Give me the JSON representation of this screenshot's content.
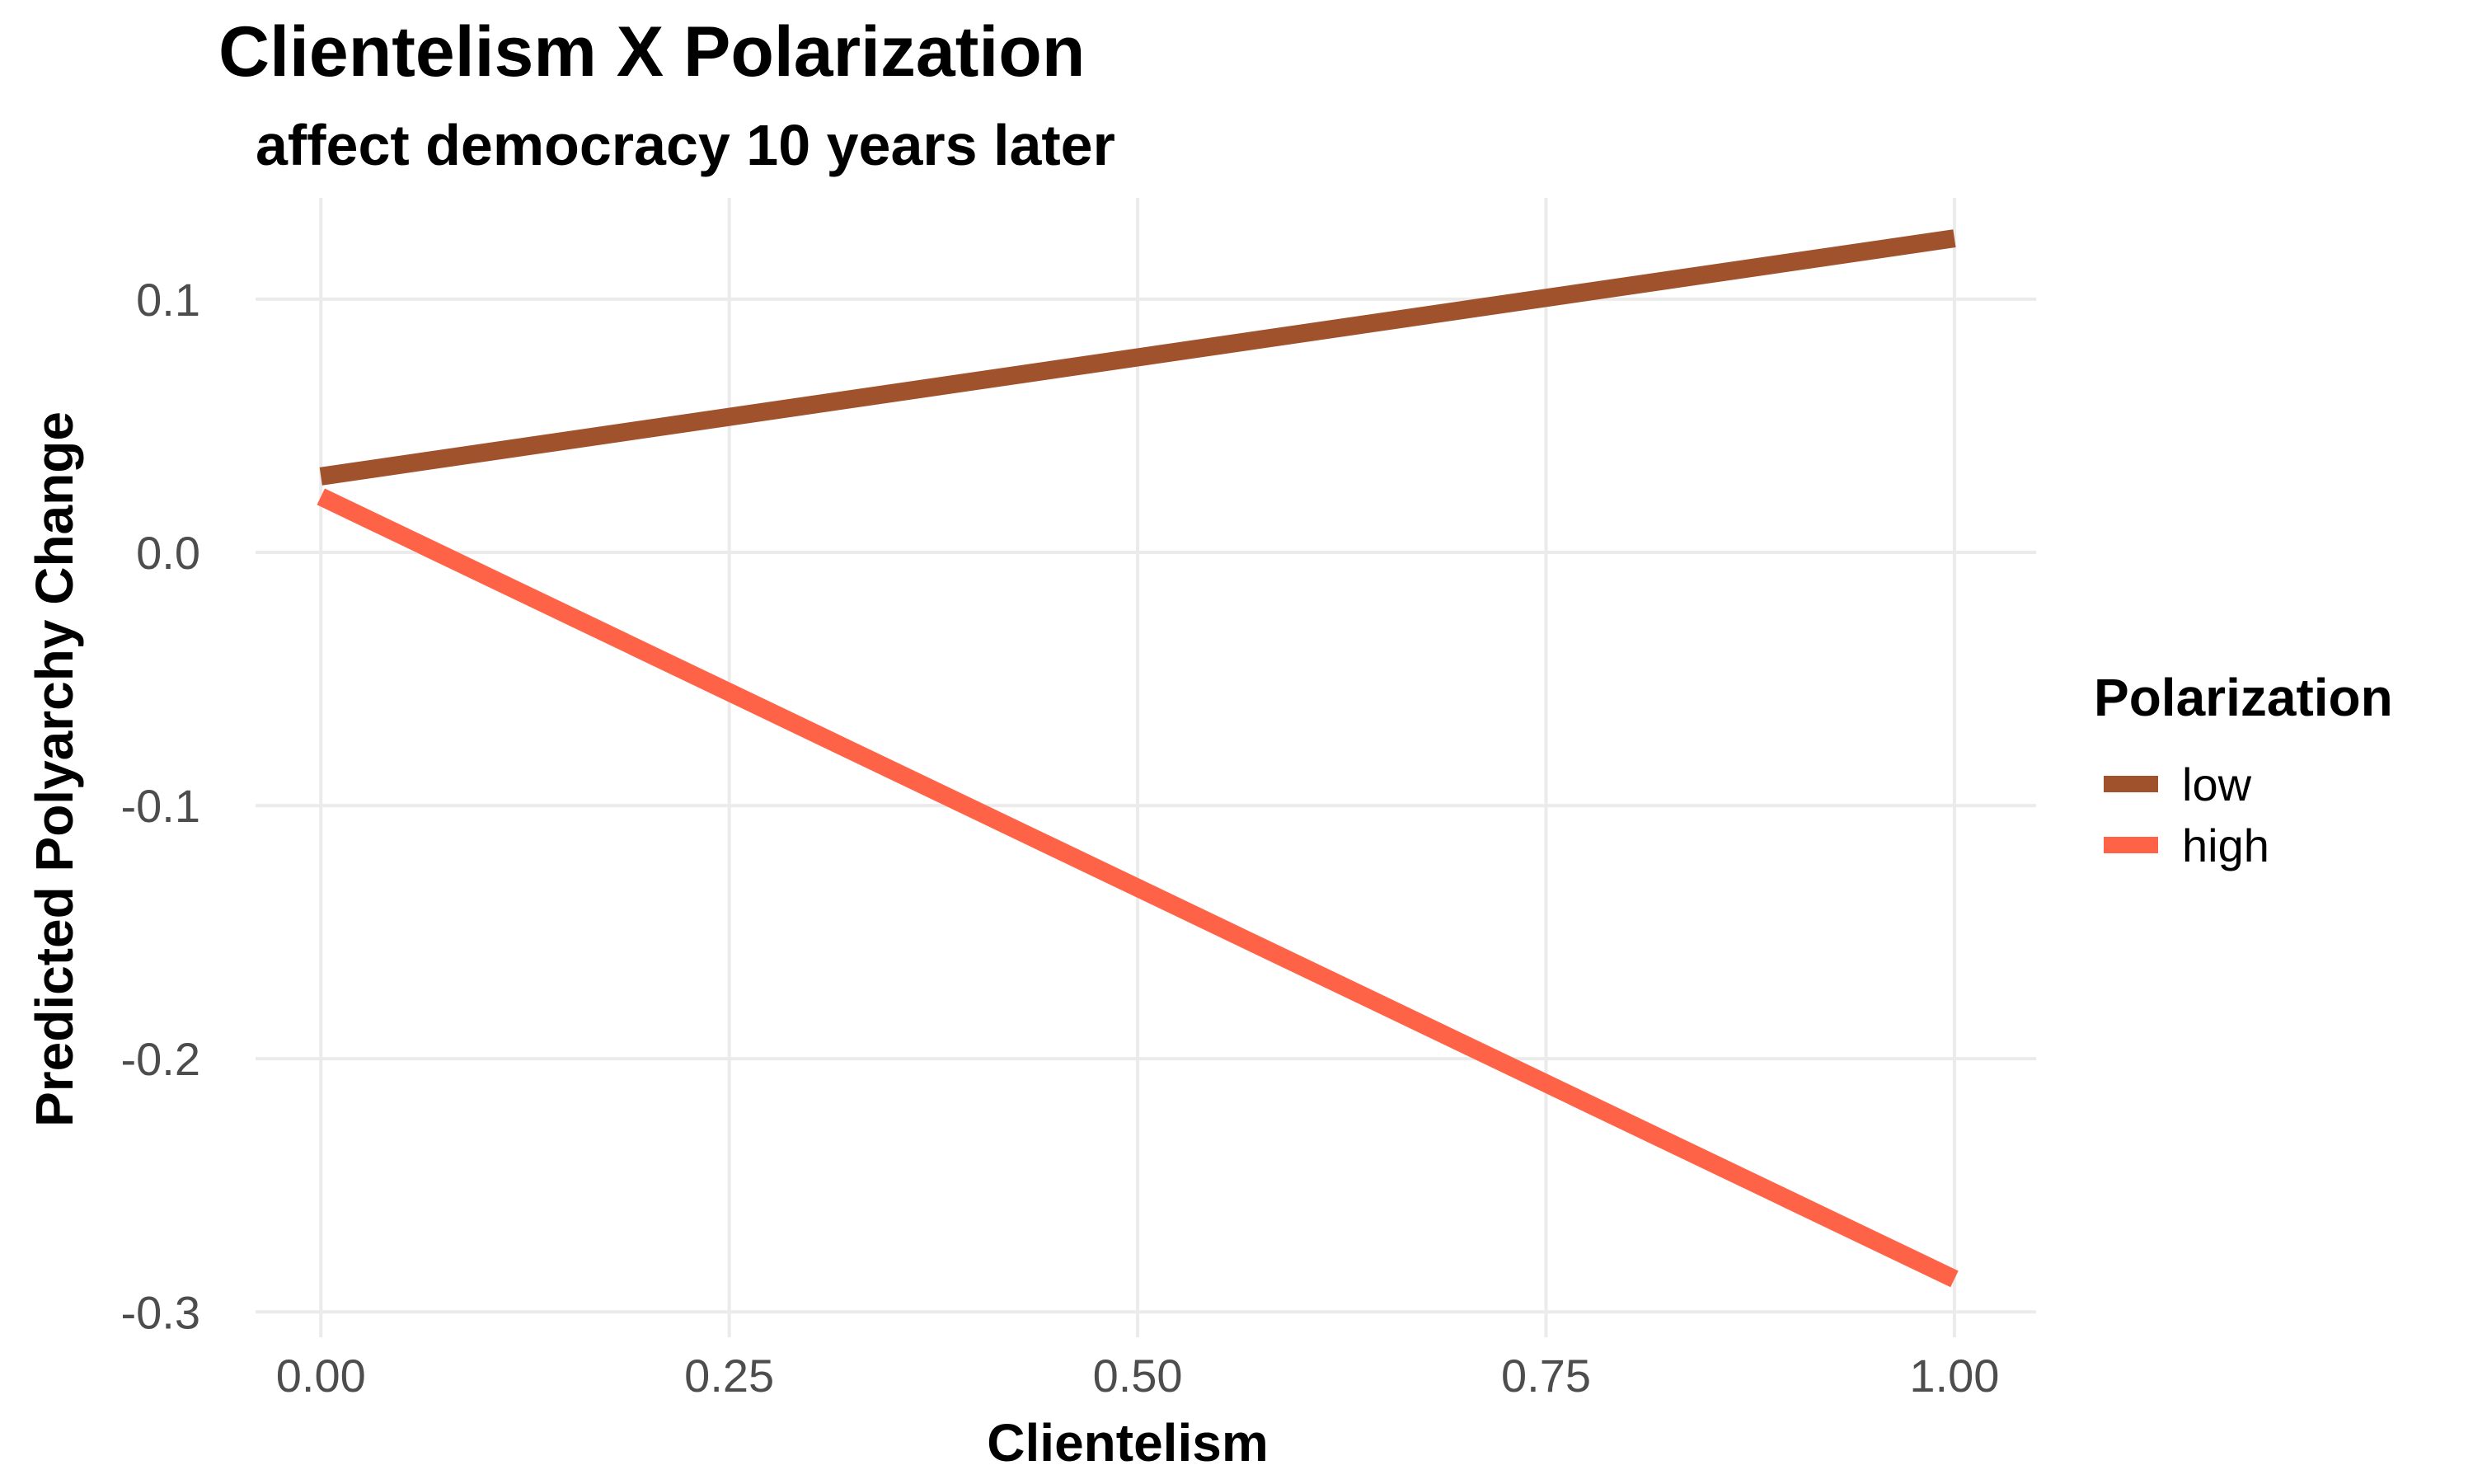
{
  "chart_data": {
    "type": "line",
    "title": "Clientelism X Polarization",
    "subtitle": "affect democracy 10 years later",
    "xlabel": "Clientelism",
    "ylabel": "Predicted Polyarchy Change",
    "xlim": [
      -0.04,
      1.05
    ],
    "ylim": [
      -0.31,
      0.14
    ],
    "x_ticks": [
      0,
      0.25,
      0.5,
      0.75,
      1
    ],
    "x_tick_labels": [
      "0.00",
      "0.25",
      "0.50",
      "0.75",
      "1.00"
    ],
    "y_ticks": [
      -0.3,
      -0.2,
      -0.1,
      0.0,
      0.1
    ],
    "y_tick_labels": [
      "-0.3",
      "-0.2",
      "-0.1",
      "0.0",
      "0.1"
    ],
    "grid": true,
    "legend_title": "Polarization",
    "legend_position": "right",
    "series": [
      {
        "name": "low",
        "color": "#a0522d",
        "x": [
          0,
          1
        ],
        "y": [
          0.03,
          0.124
        ]
      },
      {
        "name": "high",
        "color": "#ff6347",
        "x": [
          0,
          1
        ],
        "y": [
          0.022,
          -0.287
        ]
      }
    ]
  }
}
